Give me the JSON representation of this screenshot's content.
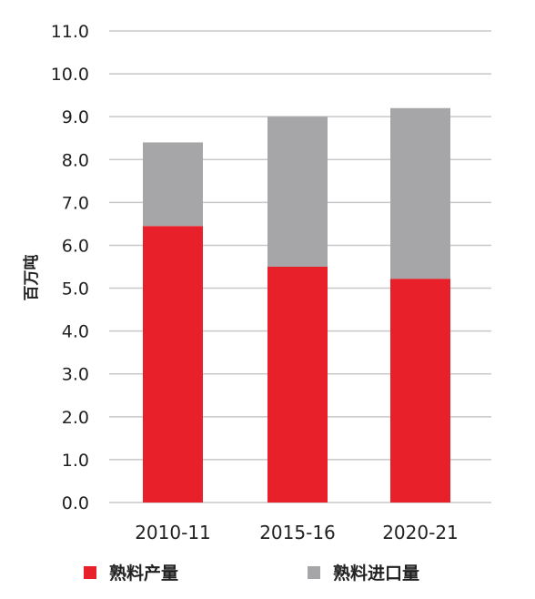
{
  "chart_data": {
    "type": "bar",
    "stacked": true,
    "categories": [
      "2010-11",
      "2015-16",
      "2020-21"
    ],
    "series": [
      {
        "name": "熟料产量",
        "values": [
          6.45,
          5.5,
          5.22
        ],
        "color": "#e8202a"
      },
      {
        "name": "熟料进口量",
        "values": [
          1.95,
          3.5,
          3.98
        ],
        "color": "#a6a6a8"
      }
    ],
    "ylabel": "百万吨",
    "ylim": [
      0,
      11
    ],
    "yticks": [
      "0.0",
      "1.0",
      "2.0",
      "3.0",
      "4.0",
      "5.0",
      "6.0",
      "7.0",
      "8.0",
      "9.0",
      "10.0",
      "11.0"
    ],
    "grid": true,
    "legend": "bottom"
  }
}
